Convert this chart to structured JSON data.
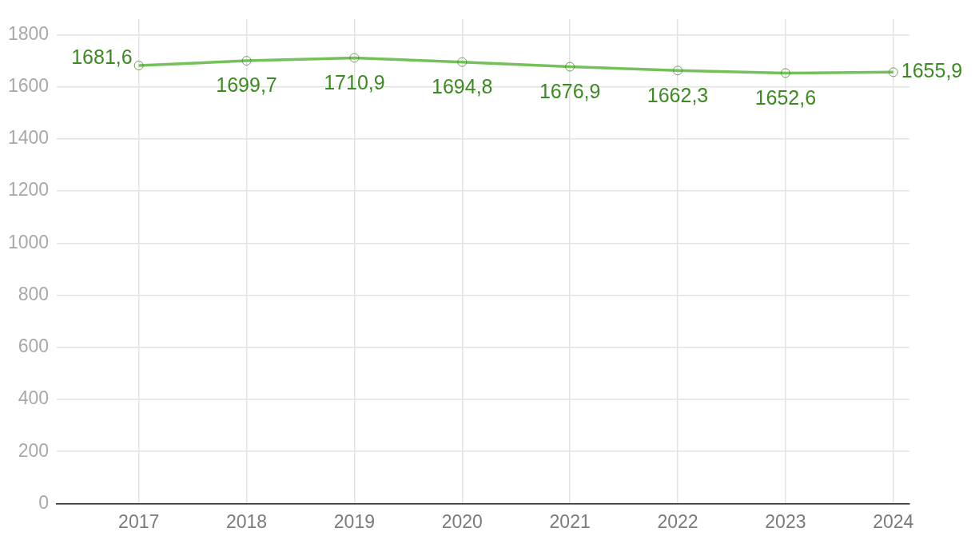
{
  "chart_data": {
    "type": "line",
    "x": [
      2017,
      2018,
      2019,
      2020,
      2021,
      2022,
      2023,
      2024
    ],
    "series": [
      {
        "color": "#74c05a",
        "values": [
          1681.6,
          1699.7,
          1710.9,
          1694.8,
          1676.9,
          1662.3,
          1652.6,
          1655.9
        ],
        "value_labels": [
          "1681,6",
          "1699,7",
          "1710,9",
          "1694,8",
          "1676,9",
          "1662,3",
          "1652,6",
          "1655,9"
        ]
      }
    ],
    "xlim": [
      2016.24,
      2024.15
    ],
    "xticks": [
      2017,
      2018,
      2019,
      2020,
      2021,
      2022,
      2023,
      2024
    ],
    "ylim": [
      0,
      1860
    ],
    "yticks": [
      0,
      200,
      400,
      600,
      800,
      1000,
      1200,
      1400,
      1600,
      1800
    ],
    "grid": true,
    "legend": false,
    "marker": "circle",
    "line_style": "solid"
  }
}
